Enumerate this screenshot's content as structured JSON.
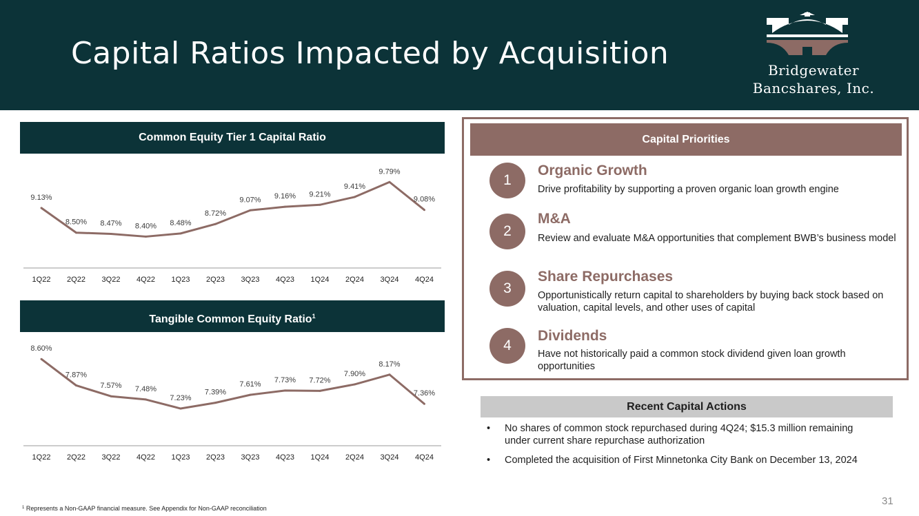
{
  "header": {
    "title": "Capital Ratios Impacted by Acquisition",
    "logo_line1": "Bridgewater",
    "logo_line2": "Bancshares, Inc."
  },
  "colors": {
    "navy": "#0c3338",
    "mauve": "#8d6b65",
    "gray_band": "#c9c9c9"
  },
  "chart_data": [
    {
      "type": "line",
      "title": "Common Equity Tier 1 Capital Ratio",
      "categories": [
        "1Q22",
        "2Q22",
        "3Q22",
        "4Q22",
        "1Q23",
        "2Q23",
        "3Q23",
        "4Q23",
        "1Q24",
        "2Q24",
        "3Q24",
        "4Q24"
      ],
      "values": [
        9.13,
        8.5,
        8.47,
        8.4,
        8.48,
        8.72,
        9.07,
        9.16,
        9.21,
        9.41,
        9.79,
        9.08
      ],
      "labels": [
        "9.13%",
        "8.50%",
        "8.47%",
        "8.40%",
        "8.48%",
        "8.72%",
        "9.07%",
        "9.16%",
        "9.21%",
        "9.41%",
        "9.79%",
        "9.08%"
      ],
      "ylim": [
        7.6,
        9.9
      ]
    },
    {
      "type": "line",
      "title": "Tangible Common Equity Ratio",
      "title_superscript": "1",
      "categories": [
        "1Q22",
        "2Q22",
        "3Q22",
        "4Q22",
        "1Q23",
        "2Q23",
        "3Q23",
        "4Q23",
        "1Q24",
        "2Q24",
        "3Q24",
        "4Q24"
      ],
      "values": [
        8.6,
        7.87,
        7.57,
        7.48,
        7.23,
        7.39,
        7.61,
        7.73,
        7.72,
        7.9,
        8.17,
        7.36
      ],
      "labels": [
        "8.60%",
        "7.87%",
        "7.57%",
        "7.48%",
        "7.23%",
        "7.39%",
        "7.61%",
        "7.73%",
        "7.72%",
        "7.90%",
        "8.17%",
        "7.36%"
      ],
      "ylim": [
        6.2,
        8.7
      ]
    }
  ],
  "priorities": {
    "title": "Capital Priorities",
    "items": [
      {
        "num": "1",
        "title": "Organic Growth",
        "desc": "Drive profitability by supporting a proven organic loan growth engine"
      },
      {
        "num": "2",
        "title": "M&A",
        "desc": "Review and evaluate M&A opportunities that complement BWB’s business model"
      },
      {
        "num": "3",
        "title": "Share Repurchases",
        "desc": "Opportunistically return capital to shareholders by buying back stock based on valuation, capital levels, and other uses of capital"
      },
      {
        "num": "4",
        "title": "Dividends",
        "desc": "Have not historically paid a common stock dividend given loan growth opportunities"
      }
    ]
  },
  "recent": {
    "title": "Recent Capital Actions",
    "bullets": [
      "No shares of common stock repurchased during 4Q24; $15.3 million remaining under current share repurchase authorization",
      "Completed the acquisition of First Minnetonka City Bank on December 13, 2024"
    ]
  },
  "footnote": {
    "marker": "1",
    "text": "Represents a Non-GAAP financial measure. See Appendix for Non-GAAP reconciliation"
  },
  "page_number": "31"
}
